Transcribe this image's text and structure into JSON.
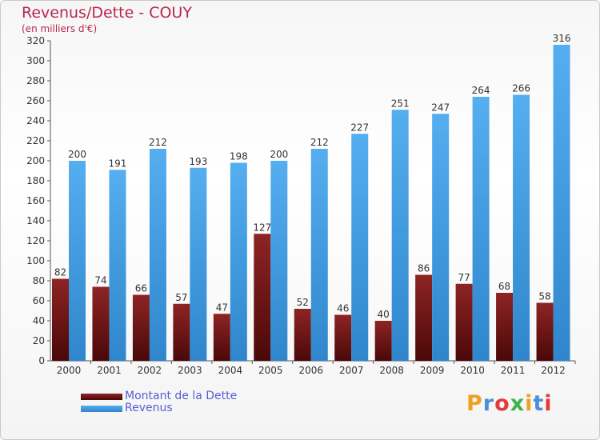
{
  "header": {
    "title": "Revenus/Dette - COUY",
    "subtitle": "(en milliers d'€)"
  },
  "legend": {
    "items": [
      {
        "label": "Montant de la Dette",
        "color": "#7a1a1a"
      },
      {
        "label": "Revenus",
        "color": "#4da3e6"
      }
    ]
  },
  "logo": {
    "text": "Proxiti",
    "colors": [
      "#f0a020",
      "#4a90d9",
      "#e23b3b",
      "#3bb34a",
      "#f0a020",
      "#4a90d9",
      "#e23b3b"
    ]
  },
  "chart_data": {
    "type": "bar",
    "categories": [
      "2000",
      "2001",
      "2002",
      "2003",
      "2004",
      "2005",
      "2006",
      "2007",
      "2008",
      "2009",
      "2010",
      "2011",
      "2012"
    ],
    "series": [
      {
        "name": "Montant de la Dette",
        "values": [
          82,
          74,
          66,
          57,
          47,
          127,
          52,
          46,
          40,
          86,
          77,
          68,
          58
        ]
      },
      {
        "name": "Revenus",
        "values": [
          200,
          191,
          212,
          193,
          198,
          200,
          212,
          227,
          251,
          247,
          264,
          266,
          316
        ]
      }
    ],
    "ylim": [
      0,
      320
    ],
    "yticks": [
      0,
      20,
      40,
      60,
      80,
      100,
      120,
      140,
      160,
      180,
      200,
      220,
      240,
      260,
      280,
      300,
      320
    ],
    "grid": false,
    "legend_position": "bottom-left",
    "colors": {
      "debt": "#7a1a1a",
      "revenue": "#4da3e6"
    }
  }
}
